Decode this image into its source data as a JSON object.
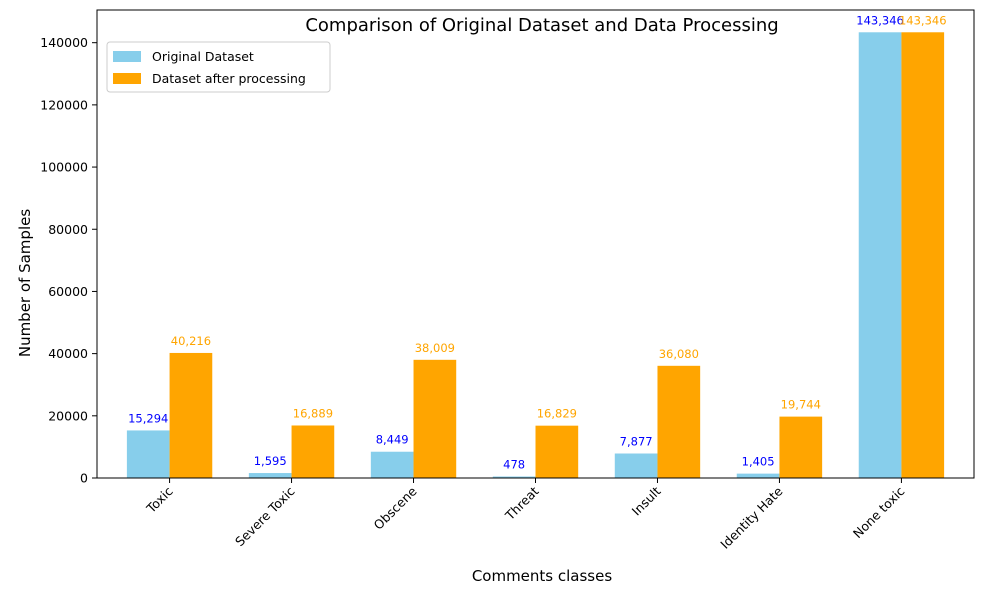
{
  "chart_data": {
    "type": "bar",
    "title": "Comparison of Original Dataset and Data Processing",
    "xlabel": "Comments classes",
    "ylabel": "Number of Samples",
    "categories": [
      "Toxic",
      "Severe Toxic",
      "Obscene",
      "Threat",
      "Insult",
      "Identity Hate",
      "None toxic"
    ],
    "series": [
      {
        "name": "Original Dataset",
        "color": "#87CEEB",
        "label_color": "#0000ff",
        "values": [
          15294,
          1595,
          8449,
          478,
          7877,
          1405,
          143346
        ],
        "labels": [
          "15,294",
          "1,595",
          "8,449",
          "478",
          "7,877",
          "1,405",
          "143,346"
        ]
      },
      {
        "name": "Dataset after processing",
        "color": "#FFA500",
        "label_color": "#FFA500",
        "values": [
          40216,
          16889,
          38009,
          16829,
          36080,
          19744,
          143346
        ],
        "labels": [
          "40,216",
          "16,889",
          "38,009",
          "16,829",
          "36,080",
          "19,744",
          "143,346"
        ]
      }
    ],
    "ylim": [
      0,
      150513
    ],
    "yticks": [
      0,
      20000,
      40000,
      60000,
      80000,
      100000,
      120000,
      140000
    ],
    "ytick_labels": [
      "0",
      "20000",
      "40000",
      "60000",
      "80000",
      "100000",
      "120000",
      "140000"
    ],
    "legend_position": "top-left",
    "grid": false
  }
}
